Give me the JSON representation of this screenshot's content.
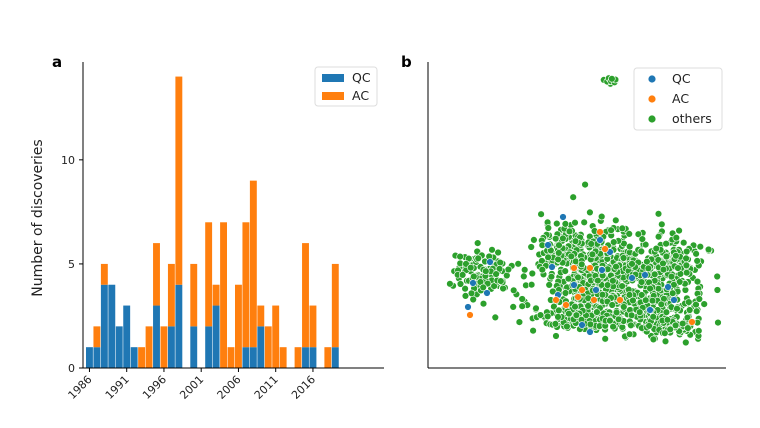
{
  "chart_data": [
    {
      "panel": "a",
      "type": "bar",
      "stacked": true,
      "ylabel": "Number of discoveries",
      "ylim": [
        0,
        14.7
      ],
      "yticks": [
        0,
        5,
        10
      ],
      "xticks": [
        1986,
        1991,
        1996,
        2001,
        2006,
        2011,
        2016
      ],
      "legend_position": "top-right",
      "categories": [
        1986,
        1987,
        1988,
        1989,
        1990,
        1991,
        1992,
        1993,
        1994,
        1995,
        1996,
        1997,
        1998,
        1999,
        2000,
        2001,
        2002,
        2003,
        2004,
        2005,
        2006,
        2007,
        2008,
        2009,
        2010,
        2011,
        2012,
        2013,
        2014,
        2015,
        2016,
        2017,
        2018,
        2019
      ],
      "series": [
        {
          "name": "QC",
          "color": "#1f77b4",
          "values": [
            1,
            1,
            4,
            4,
            2,
            3,
            1,
            0,
            0,
            3,
            0,
            2,
            4,
            0,
            2,
            0,
            2,
            3,
            0,
            0,
            0,
            1,
            1,
            2,
            0,
            0,
            0,
            0,
            0,
            1,
            1,
            0,
            0,
            1
          ]
        },
        {
          "name": "AC",
          "color": "#ff7f0e",
          "values": [
            0,
            1,
            1,
            0,
            0,
            0,
            0,
            1,
            2,
            3,
            2,
            3,
            10,
            0,
            3,
            0,
            5,
            1,
            7,
            1,
            4,
            6,
            8,
            1,
            2,
            3,
            1,
            0,
            1,
            5,
            2,
            0,
            1,
            4
          ]
        }
      ]
    },
    {
      "panel": "b",
      "type": "scatter",
      "legend_position": "top-right",
      "series": [
        {
          "name": "QC",
          "color": "#1f77b4"
        },
        {
          "name": "AC",
          "color": "#ff7f0e"
        },
        {
          "name": "others",
          "color": "#2ca02c"
        }
      ]
    }
  ]
}
